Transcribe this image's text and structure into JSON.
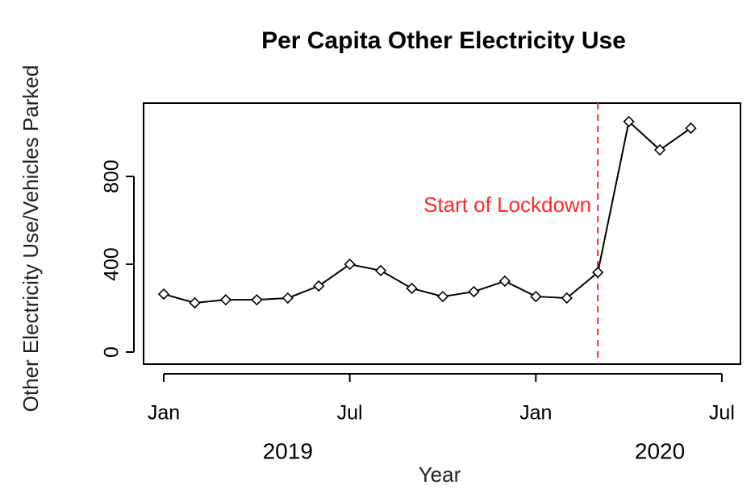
{
  "chart_data": {
    "type": "line",
    "title": "Per Capita Other Electricity Use",
    "x_label": "Year",
    "y_label": "Other Electricity Use/Vehicles Parked",
    "x": [
      "2019-01",
      "2019-02",
      "2019-03",
      "2019-04",
      "2019-05",
      "2019-06",
      "2019-07",
      "2019-08",
      "2019-09",
      "2019-10",
      "2019-11",
      "2019-12",
      "2020-01",
      "2020-02",
      "2020-03",
      "2020-04",
      "2020-05",
      "2020-06"
    ],
    "series": [
      {
        "color": "#000000",
        "values": [
          264,
          224,
          238,
          238,
          246,
          301,
          400,
          371,
          290,
          253,
          275,
          323,
          253,
          246,
          363,
          1050,
          921,
          1020
        ]
      }
    ],
    "ylim": [
      -55,
      1134
    ],
    "yticks": [
      0,
      400,
      800
    ],
    "xticks": [
      {
        "value": "2019-01",
        "label": "Jan"
      },
      {
        "value": "2019-07",
        "label": "Jul"
      },
      {
        "value": "2020-01",
        "label": "Jan"
      },
      {
        "value": "2020-07",
        "label": "Jul"
      }
    ],
    "year_labels": [
      {
        "value": "2019-05",
        "label": "2019"
      },
      {
        "value": "2020-05",
        "label": "2020"
      }
    ],
    "annotation": {
      "x": "2020-03",
      "text": "Start of Lockdown",
      "color": "#ff2a2a"
    }
  }
}
